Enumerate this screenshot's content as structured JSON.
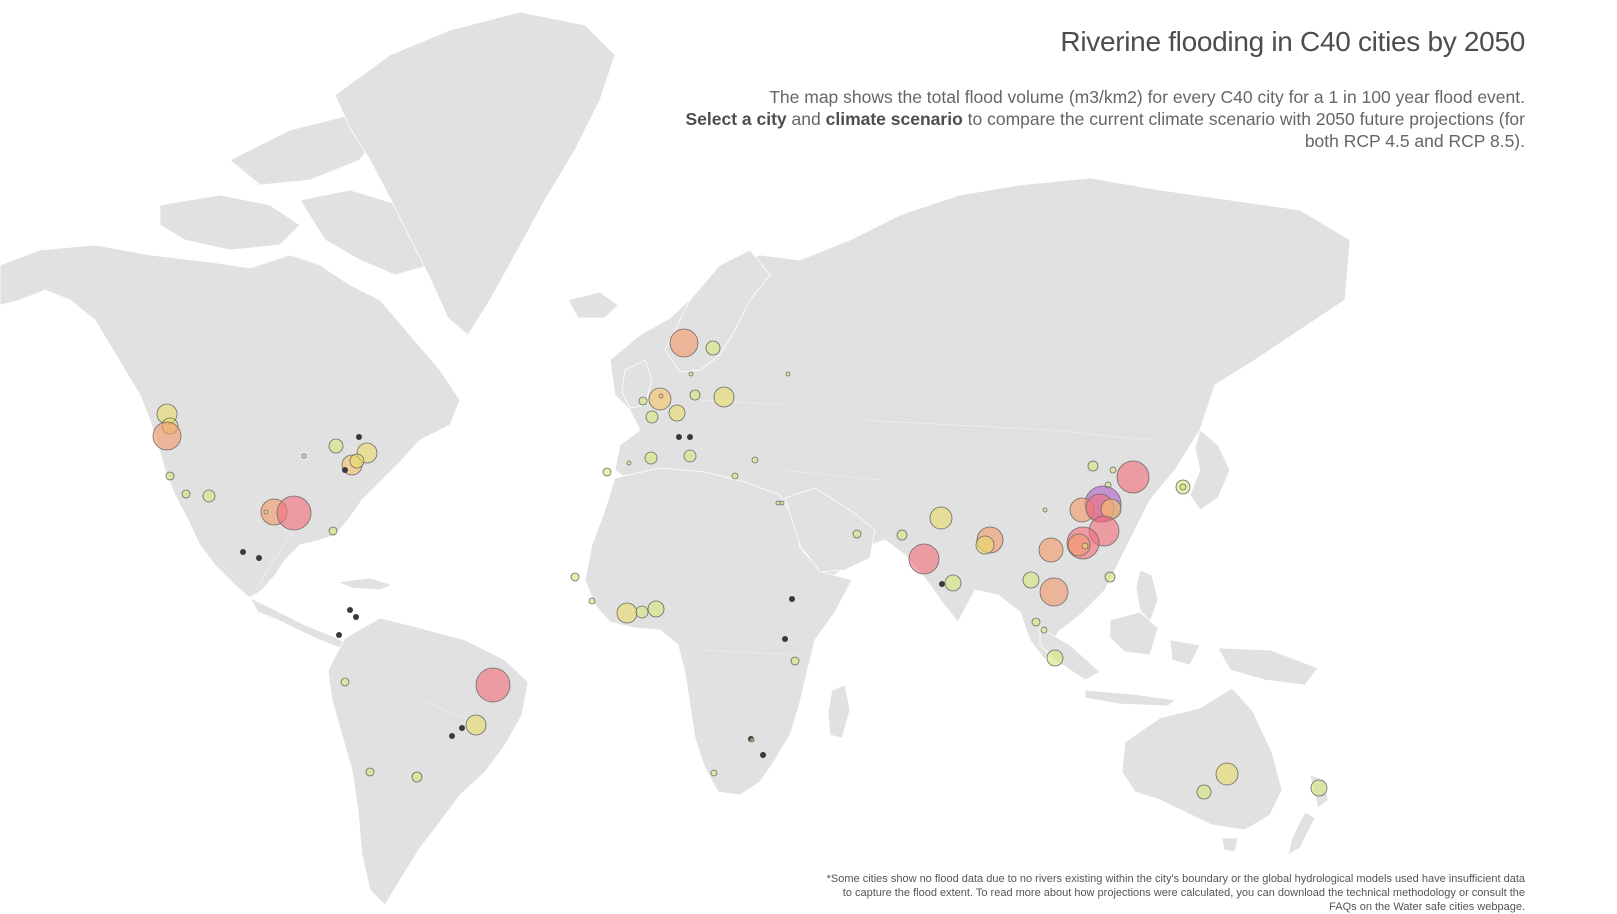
{
  "title": "Riverine flooding in C40 cities by 2050",
  "description": {
    "part1": "The map shows the total flood volume (m3/km2) for every C40 city for a 1 in 100 year flood event.",
    "link_city": "Select a city",
    "and": "and",
    "link_scenario": "climate scenario",
    "part2": "to compare the current climate scenario with 2050 future projections (for both RCP 4.5 and RCP 8.5)."
  },
  "footnote": "*Some cities show no flood data due to no rivers existing within the city's boundary or the global hydrological models used have insufficient data to capture the flood extent. To read more about how projections were calculated, you can download the technical methodology or consult the FAQs on the Water safe cities webpage.",
  "colors": {
    "land": "#e1e1e1",
    "low": "#d6e67c",
    "low_mid": "#e8dc6a",
    "mid": "#f5c46a",
    "high": "#f49a6a",
    "very_high": "#f2707a",
    "extreme": "#b25fc9",
    "no_data": "#3a3a3a"
  }
}
